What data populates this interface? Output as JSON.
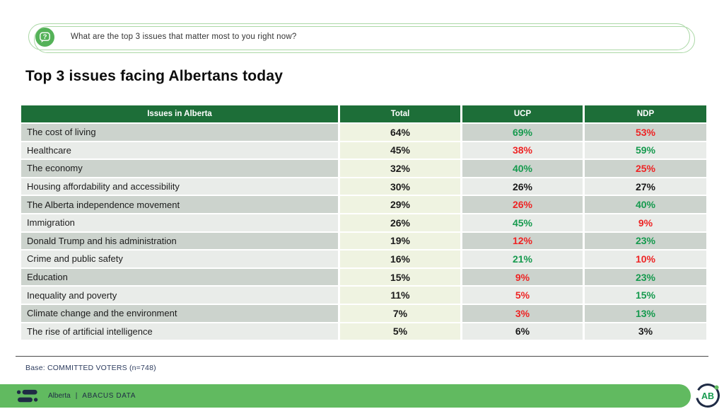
{
  "question": {
    "icon": "question-bubble-icon",
    "text": "What are the top 3 issues that matter most to you right now?"
  },
  "title": "Top 3 issues facing Albertans today",
  "table": {
    "headers": [
      "Issues in Alberta",
      "Total",
      "UCP",
      "NDP"
    ],
    "rows": [
      {
        "issue": "The cost of living",
        "total": "64%",
        "ucp": "69%",
        "ucp_color": "green",
        "ndp": "53%",
        "ndp_color": "red"
      },
      {
        "issue": "Healthcare",
        "total": "45%",
        "ucp": "38%",
        "ucp_color": "red",
        "ndp": "59%",
        "ndp_color": "green"
      },
      {
        "issue": "The economy",
        "total": "32%",
        "ucp": "40%",
        "ucp_color": "green",
        "ndp": "25%",
        "ndp_color": "red"
      },
      {
        "issue": "Housing affordability and accessibility",
        "total": "30%",
        "ucp": "26%",
        "ucp_color": "black",
        "ndp": "27%",
        "ndp_color": "black"
      },
      {
        "issue": "The Alberta independence movement",
        "total": "29%",
        "ucp": "26%",
        "ucp_color": "red",
        "ndp": "40%",
        "ndp_color": "green"
      },
      {
        "issue": "Immigration",
        "total": "26%",
        "ucp": "45%",
        "ucp_color": "green",
        "ndp": "9%",
        "ndp_color": "red"
      },
      {
        "issue": "Donald Trump and his administration",
        "total": "19%",
        "ucp": "12%",
        "ucp_color": "red",
        "ndp": "23%",
        "ndp_color": "green"
      },
      {
        "issue": "Crime and public safety",
        "total": "16%",
        "ucp": "21%",
        "ucp_color": "green",
        "ndp": "10%",
        "ndp_color": "red"
      },
      {
        "issue": "Education",
        "total": "15%",
        "ucp": "9%",
        "ucp_color": "red",
        "ndp": "23%",
        "ndp_color": "green"
      },
      {
        "issue": "Inequality and poverty",
        "total": "11%",
        "ucp": "5%",
        "ucp_color": "red",
        "ndp": "15%",
        "ndp_color": "green"
      },
      {
        "issue": "Climate change and the environment",
        "total": "7%",
        "ucp": "3%",
        "ucp_color": "red",
        "ndp": "13%",
        "ndp_color": "green"
      },
      {
        "issue": "The rise of artificial intelligence",
        "total": "5%",
        "ucp": "6%",
        "ucp_color": "black",
        "ndp": "3%",
        "ndp_color": "black"
      }
    ]
  },
  "chart_data": {
    "type": "table",
    "title": "Top 3 issues facing Albertans today",
    "question": "What are the top 3 issues that matter most to you right now?",
    "categories": [
      "The cost of living",
      "Healthcare",
      "The economy",
      "Housing affordability and accessibility",
      "The Alberta independence movement",
      "Immigration",
      "Donald Trump and his administration",
      "Crime and public safety",
      "Education",
      "Inequality and poverty",
      "Climate change and the environment",
      "The rise of artificial intelligence"
    ],
    "series": [
      {
        "name": "Total",
        "values": [
          64,
          45,
          32,
          30,
          29,
          26,
          19,
          16,
          15,
          11,
          7,
          5
        ]
      },
      {
        "name": "UCP",
        "values": [
          69,
          38,
          40,
          26,
          26,
          45,
          12,
          21,
          9,
          5,
          3,
          6
        ]
      },
      {
        "name": "NDP",
        "values": [
          53,
          59,
          25,
          27,
          40,
          9,
          23,
          10,
          23,
          15,
          13,
          3
        ]
      }
    ],
    "unit": "%",
    "base": "COMMITTED VOTERS (n=748)"
  },
  "base_note": "Base: COMMITTED VOTERS (n=748)",
  "footer": {
    "brand": "Alberta",
    "separator": "|",
    "org": "ABACUS DATA",
    "badge": "AB"
  },
  "colors": {
    "header_green": "#1d6e38",
    "row_dark": "#ccd3cd",
    "row_light": "#e9ece9",
    "total_col": "#eff3e1",
    "positive": "#169a4e",
    "negative": "#ee2424",
    "footer_green": "#61ba60",
    "navy": "#1f2b45",
    "pill_border": "#abd8a6",
    "icon_green": "#54b258"
  }
}
